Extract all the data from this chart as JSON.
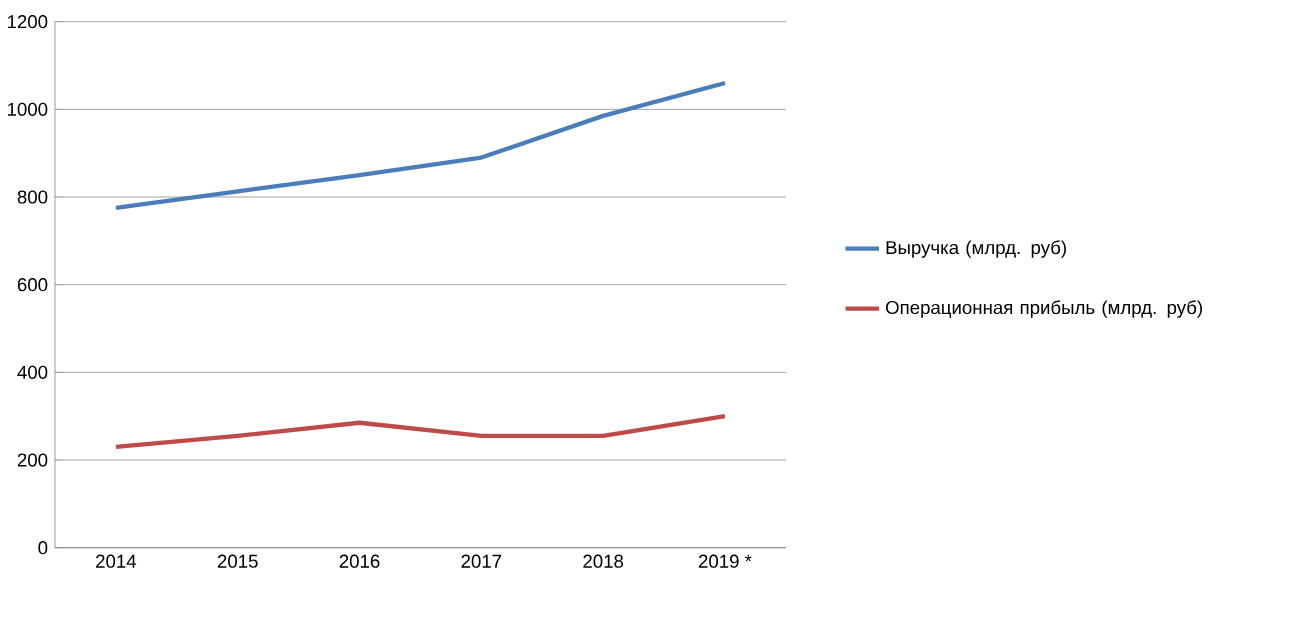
{
  "chart_data": {
    "type": "line",
    "categories": [
      "2014",
      "2015",
      "2016",
      "2017",
      "2018",
      "2019 *"
    ],
    "series": [
      {
        "name": "Выручка (млрд. руб)",
        "color": "#4a7ebb",
        "values": [
          775,
          813,
          850,
          890,
          985,
          1060
        ]
      },
      {
        "name": "Операционная прибыль (млрд. руб)",
        "color": "#be4b48",
        "values": [
          230,
          255,
          285,
          255,
          255,
          300
        ]
      }
    ],
    "ylim": [
      0,
      1200
    ],
    "yticks": [
      0,
      200,
      400,
      600,
      800,
      1000,
      1200
    ],
    "grid": "y",
    "legend": "right",
    "marker": "none",
    "line_style": "solid"
  }
}
